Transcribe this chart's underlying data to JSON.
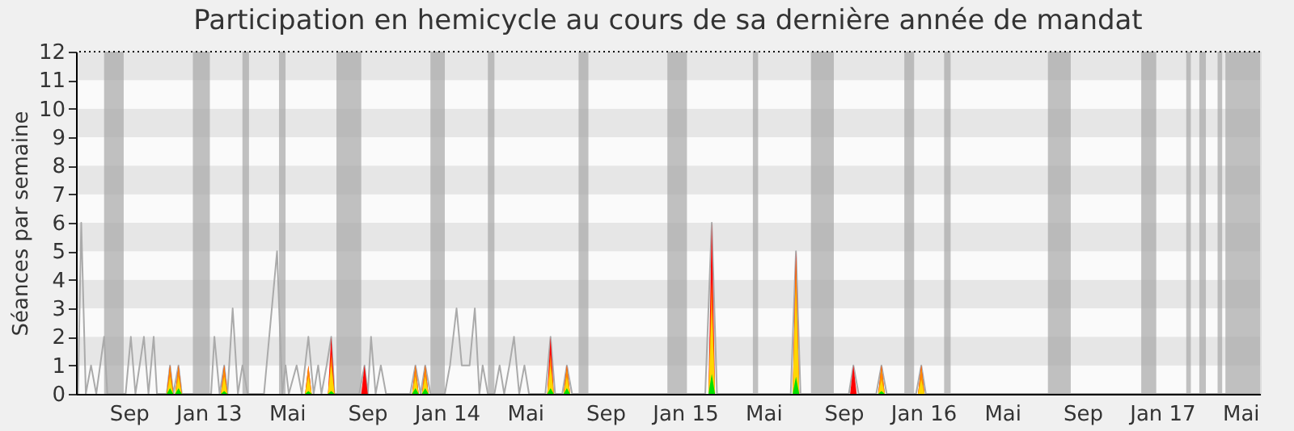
{
  "chart_data": {
    "type": "line",
    "title": "Participation en hemicycle au cours de sa dernière année de mandat",
    "ylabel": "Séances par semaine",
    "xlim": [
      "2012-06-12",
      "2017-05-31"
    ],
    "xticks": [
      {
        "value": "2012-09-01",
        "label": "Sep"
      },
      {
        "value": "2013-01-01",
        "label": "Jan 13"
      },
      {
        "value": "2013-05-01",
        "label": "Mai"
      },
      {
        "value": "2013-09-01",
        "label": "Sep"
      },
      {
        "value": "2014-01-01",
        "label": "Jan 14"
      },
      {
        "value": "2014-05-01",
        "label": "Mai"
      },
      {
        "value": "2014-09-01",
        "label": "Sep"
      },
      {
        "value": "2015-01-01",
        "label": "Jan 15"
      },
      {
        "value": "2015-05-01",
        "label": "Mai"
      },
      {
        "value": "2015-09-01",
        "label": "Sep"
      },
      {
        "value": "2016-01-01",
        "label": "Jan 16"
      },
      {
        "value": "2016-05-01",
        "label": "Mai"
      },
      {
        "value": "2016-09-01",
        "label": "Sep"
      },
      {
        "value": "2017-01-01",
        "label": "Jan 17"
      },
      {
        "value": "2017-05-01",
        "label": "Mai"
      }
    ],
    "ylim": [
      0,
      12
    ],
    "yticks": [
      0,
      1,
      2,
      3,
      4,
      5,
      6,
      7,
      8,
      9,
      10,
      11,
      12
    ],
    "grid": false,
    "series": [
      {
        "color": "#aaaaaa",
        "x": [
          "2012-06-15",
          "2012-06-20",
          "2012-06-27",
          "2012-07-05",
          "2012-07-13",
          "2012-07-25",
          "2012-07-30",
          "2012-08-27",
          "2012-09-04",
          "2012-09-11",
          "2012-09-24",
          "2012-10-01",
          "2012-10-09",
          "2012-10-14",
          "2012-10-29",
          "2012-11-03",
          "2012-11-08",
          "2012-11-16",
          "2012-11-21",
          "2013-01-05",
          "2013-01-10",
          "2013-01-18",
          "2013-01-25",
          "2013-01-30",
          "2013-02-07",
          "2013-02-15",
          "2013-02-22",
          "2013-03-02",
          "2013-03-27",
          "2013-04-16",
          "2013-04-24",
          "2013-04-29",
          "2013-05-04",
          "2013-05-16",
          "2013-05-24",
          "2013-06-03",
          "2013-06-11",
          "2013-06-18",
          "2013-06-23",
          "2013-07-01",
          "2013-07-08",
          "2013-07-13",
          "2013-08-20",
          "2013-08-28",
          "2013-09-02",
          "2013-09-07",
          "2013-09-14",
          "2013-09-22",
          "2013-09-30",
          "2013-11-06",
          "2013-11-14",
          "2013-11-22",
          "2013-11-29",
          "2013-12-07",
          "2013-12-29",
          "2014-01-06",
          "2014-01-16",
          "2014-01-24",
          "2014-02-05",
          "2014-02-13",
          "2014-02-20",
          "2014-02-25",
          "2014-03-05",
          "2014-03-15",
          "2014-03-23",
          "2014-03-30",
          "2014-04-07",
          "2014-04-14",
          "2014-04-22",
          "2014-04-30",
          "2014-05-07",
          "2014-06-01",
          "2014-06-09",
          "2014-06-16",
          "2014-06-27",
          "2014-07-04",
          "2014-07-12",
          "2015-02-01",
          "2015-02-11",
          "2015-02-19",
          "2015-06-12",
          "2015-06-20",
          "2015-06-27",
          "2015-09-09",
          "2015-09-16",
          "2015-09-24",
          "2015-10-21",
          "2015-10-29",
          "2015-11-06",
          "2015-12-21",
          "2015-12-29",
          "2016-01-05",
          "2017-05-31"
        ],
        "values": [
          0,
          6,
          0,
          1,
          0,
          2,
          0,
          0,
          2,
          0,
          2,
          0,
          2,
          0,
          0,
          1,
          0,
          1,
          0,
          0,
          2,
          0,
          1,
          0,
          3,
          0,
          1,
          0,
          0,
          5,
          0,
          1,
          0,
          1,
          0,
          2,
          0,
          1,
          0,
          1,
          2,
          0,
          0,
          1,
          0,
          2,
          0,
          1,
          0,
          0,
          1,
          0,
          1,
          0,
          0,
          1,
          3,
          1,
          1,
          3,
          0,
          1,
          0,
          0,
          1,
          0,
          1,
          2,
          0,
          1,
          0,
          0,
          2,
          0,
          0,
          1,
          0,
          0,
          6,
          0,
          0,
          5,
          0,
          0,
          1,
          0,
          0,
          1,
          0,
          0,
          1,
          0,
          0
        ]
      },
      {
        "type": "area",
        "color": "#ff0000",
        "x": [
          "2012-10-29",
          "2012-11-03",
          "2012-11-08",
          "2012-11-11",
          "2012-11-16",
          "2012-11-21",
          "2013-01-20",
          "2013-01-25",
          "2013-01-30",
          "2013-05-29",
          "2013-06-03",
          "2013-06-08",
          "2013-07-03",
          "2013-07-08",
          "2013-07-13",
          "2013-08-23",
          "2013-08-28",
          "2013-09-02",
          "2013-11-09",
          "2013-11-14",
          "2013-11-19",
          "2013-11-24",
          "2013-11-29",
          "2013-12-04",
          "2014-06-04",
          "2014-06-09",
          "2014-06-14",
          "2014-06-29",
          "2014-07-04",
          "2014-07-09",
          "2015-02-06",
          "2015-02-11",
          "2015-02-16",
          "2015-06-15",
          "2015-06-20",
          "2015-06-25",
          "2015-09-11",
          "2015-09-16",
          "2015-09-21",
          "2015-10-24",
          "2015-10-29",
          "2015-11-03",
          "2015-12-24",
          "2015-12-29",
          "2016-01-03"
        ],
        "values": [
          0,
          1,
          0,
          0,
          1,
          0,
          0,
          1,
          0,
          0,
          1,
          0,
          0,
          2,
          0,
          0,
          1,
          0,
          0,
          1,
          0,
          0,
          1,
          0,
          0,
          2,
          0,
          0,
          1,
          0,
          0,
          6,
          0,
          0,
          5,
          0,
          0,
          1,
          0,
          0,
          1,
          0,
          0,
          1,
          0
        ]
      },
      {
        "type": "area",
        "color": "#ff8c00",
        "x": [
          "2012-10-29",
          "2012-11-03",
          "2012-11-08",
          "2012-11-11",
          "2012-11-16",
          "2012-11-21",
          "2013-01-20",
          "2013-01-25",
          "2013-01-30",
          "2013-05-29",
          "2013-06-03",
          "2013-06-08",
          "2013-07-03",
          "2013-07-08",
          "2013-07-13",
          "2013-08-23",
          "2013-08-28",
          "2013-09-02",
          "2013-11-09",
          "2013-11-14",
          "2013-11-19",
          "2013-11-24",
          "2013-11-29",
          "2013-12-04",
          "2014-06-04",
          "2014-06-09",
          "2014-06-14",
          "2014-06-29",
          "2014-07-04",
          "2014-07-09",
          "2015-02-06",
          "2015-02-11",
          "2015-02-16",
          "2015-06-15",
          "2015-06-20",
          "2015-06-25",
          "2015-09-11",
          "2015-09-16",
          "2015-09-21",
          "2015-10-24",
          "2015-10-29",
          "2015-11-03",
          "2015-12-24",
          "2015-12-29",
          "2016-01-03"
        ],
        "values": [
          0,
          1,
          0,
          0,
          1,
          0,
          0,
          1,
          0,
          0,
          1,
          0,
          0,
          1.4,
          0,
          0,
          0,
          0,
          0,
          1,
          0,
          0,
          1,
          0,
          0,
          1.4,
          0,
          0,
          1,
          0,
          0,
          4,
          0,
          0,
          4.8,
          0,
          0,
          0,
          0,
          0,
          1,
          0,
          0,
          1,
          0
        ]
      },
      {
        "type": "area",
        "color": "#ffd700",
        "x": [
          "2012-10-29",
          "2012-11-03",
          "2012-11-08",
          "2012-11-11",
          "2012-11-16",
          "2012-11-21",
          "2013-01-20",
          "2013-01-25",
          "2013-01-30",
          "2013-05-29",
          "2013-06-03",
          "2013-06-08",
          "2013-07-03",
          "2013-07-08",
          "2013-07-13",
          "2013-08-23",
          "2013-08-28",
          "2013-09-02",
          "2013-11-09",
          "2013-11-14",
          "2013-11-19",
          "2013-11-24",
          "2013-11-29",
          "2013-12-04",
          "2014-06-04",
          "2014-06-09",
          "2014-06-14",
          "2014-06-29",
          "2014-07-04",
          "2014-07-09",
          "2015-02-06",
          "2015-02-11",
          "2015-02-16",
          "2015-06-15",
          "2015-06-20",
          "2015-06-25",
          "2015-09-11",
          "2015-09-16",
          "2015-09-21",
          "2015-10-24",
          "2015-10-29",
          "2015-11-03",
          "2015-12-24",
          "2015-12-29",
          "2016-01-03"
        ],
        "values": [
          0,
          0.6,
          0,
          0,
          0.6,
          0,
          0,
          0.6,
          0,
          0,
          0.6,
          0,
          0,
          1,
          0,
          0,
          0,
          0,
          0,
          0.6,
          0,
          0,
          0.6,
          0,
          0,
          1,
          0,
          0,
          0.6,
          0,
          0,
          3,
          0,
          0,
          3.8,
          0,
          0,
          0,
          0,
          0,
          0.5,
          0,
          0,
          0.5,
          0
        ]
      },
      {
        "type": "area",
        "color": "#00e000",
        "x": [
          "2012-10-29",
          "2012-11-03",
          "2012-11-08",
          "2012-11-11",
          "2012-11-16",
          "2012-11-21",
          "2013-01-20",
          "2013-01-25",
          "2013-01-30",
          "2013-05-29",
          "2013-06-03",
          "2013-06-08",
          "2013-07-03",
          "2013-07-08",
          "2013-07-13",
          "2013-08-23",
          "2013-08-28",
          "2013-09-02",
          "2013-11-09",
          "2013-11-14",
          "2013-11-19",
          "2013-11-24",
          "2013-11-29",
          "2013-12-04",
          "2014-06-04",
          "2014-06-09",
          "2014-06-14",
          "2014-06-29",
          "2014-07-04",
          "2014-07-09",
          "2015-02-06",
          "2015-02-11",
          "2015-02-16",
          "2015-06-15",
          "2015-06-20",
          "2015-06-25",
          "2015-09-11",
          "2015-09-16",
          "2015-09-21",
          "2015-10-24",
          "2015-10-29",
          "2015-11-03",
          "2015-12-24",
          "2015-12-29",
          "2016-01-03"
        ],
        "values": [
          0,
          0.2,
          0,
          0,
          0.2,
          0,
          0,
          0.1,
          0,
          0,
          0.1,
          0,
          0,
          0.1,
          0,
          0,
          0,
          0,
          0,
          0.2,
          0,
          0,
          0.2,
          0,
          0,
          0.2,
          0,
          0,
          0.2,
          0,
          0,
          0.7,
          0,
          0,
          0.6,
          0,
          0,
          0,
          0,
          0,
          0.1,
          0,
          0,
          0,
          0
        ]
      }
    ],
    "bands": [
      {
        "axis": "y",
        "from": 0,
        "to": 1,
        "color": "#fafafa"
      },
      {
        "axis": "y",
        "from": 1,
        "to": 2,
        "color": "#e6e6e6"
      },
      {
        "axis": "y",
        "from": 2,
        "to": 3,
        "color": "#fafafa"
      },
      {
        "axis": "y",
        "from": 3,
        "to": 4,
        "color": "#e6e6e6"
      },
      {
        "axis": "y",
        "from": 4,
        "to": 5,
        "color": "#fafafa"
      },
      {
        "axis": "y",
        "from": 5,
        "to": 6,
        "color": "#e6e6e6"
      },
      {
        "axis": "y",
        "from": 6,
        "to": 7,
        "color": "#fafafa"
      },
      {
        "axis": "y",
        "from": 7,
        "to": 8,
        "color": "#e6e6e6"
      },
      {
        "axis": "y",
        "from": 8,
        "to": 9,
        "color": "#fafafa"
      },
      {
        "axis": "y",
        "from": 9,
        "to": 10,
        "color": "#e6e6e6"
      },
      {
        "axis": "y",
        "from": 10,
        "to": 11,
        "color": "#fafafa"
      },
      {
        "axis": "y",
        "from": 11,
        "to": 12,
        "color": "#e6e6e6"
      },
      {
        "axis": "x",
        "from": "2012-07-25",
        "to": "2012-08-24",
        "color": "#a6a6a6"
      },
      {
        "axis": "x",
        "from": "2012-12-08",
        "to": "2013-01-03",
        "color": "#a6a6a6"
      },
      {
        "axis": "x",
        "from": "2013-02-22",
        "to": "2013-03-04",
        "color": "#a6a6a6"
      },
      {
        "axis": "x",
        "from": "2013-04-19",
        "to": "2013-04-29",
        "color": "#a6a6a6"
      },
      {
        "axis": "x",
        "from": "2013-07-16",
        "to": "2013-08-23",
        "color": "#a6a6a6"
      },
      {
        "axis": "x",
        "from": "2013-12-07",
        "to": "2013-12-29",
        "color": "#a6a6a6"
      },
      {
        "axis": "x",
        "from": "2014-03-05",
        "to": "2014-03-15",
        "color": "#a6a6a6"
      },
      {
        "axis": "x",
        "from": "2014-07-22",
        "to": "2014-08-06",
        "color": "#a6a6a6"
      },
      {
        "axis": "x",
        "from": "2014-12-05",
        "to": "2015-01-04",
        "color": "#a6a6a6"
      },
      {
        "axis": "x",
        "from": "2015-04-15",
        "to": "2015-04-23",
        "color": "#a6a6a6"
      },
      {
        "axis": "x",
        "from": "2015-07-13",
        "to": "2015-08-17",
        "color": "#a6a6a6"
      },
      {
        "axis": "x",
        "from": "2015-12-03",
        "to": "2015-12-18",
        "color": "#a6a6a6"
      },
      {
        "axis": "x",
        "from": "2016-02-02",
        "to": "2016-02-12",
        "color": "#a6a6a6"
      },
      {
        "axis": "x",
        "from": "2016-07-10",
        "to": "2016-08-14",
        "color": "#a6a6a6"
      },
      {
        "axis": "x",
        "from": "2016-11-30",
        "to": "2016-12-23",
        "color": "#a6a6a6"
      },
      {
        "axis": "x",
        "from": "2017-02-07",
        "to": "2017-02-14",
        "color": "#a6a6a6"
      },
      {
        "axis": "x",
        "from": "2017-02-27",
        "to": "2017-03-09",
        "color": "#a6a6a6"
      },
      {
        "axis": "x",
        "from": "2017-03-27",
        "to": "2017-04-03",
        "color": "#a6a6a6"
      },
      {
        "axis": "x",
        "from": "2017-04-08",
        "to": "2017-05-31",
        "color": "#a6a6a6"
      }
    ],
    "ref_lines": [
      {
        "axis": "y",
        "value": 12,
        "color": "#000000",
        "line_style": "dotted"
      }
    ]
  }
}
